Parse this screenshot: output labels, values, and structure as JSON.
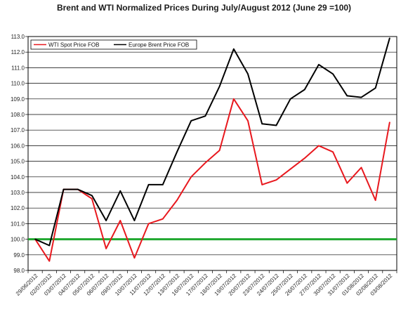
{
  "chart_data": {
    "type": "line",
    "title": "Brent and WTI Normalized Prices  During July/August  2012  (June 29 =100)",
    "xlabel": "",
    "ylabel": "",
    "ylim": [
      98.0,
      113.0
    ],
    "yticks": [
      "98.0",
      "99.0",
      "100.0",
      "101.0",
      "102.0",
      "103.0",
      "104.0",
      "105.0",
      "106.0",
      "107.0",
      "108.0",
      "109.0",
      "110.0",
      "111.0",
      "112.0",
      "113.0"
    ],
    "grid": "horizontal",
    "legend_position": "top-left",
    "categories": [
      "29/06/2012",
      "02/07/2012",
      "03/07/2012",
      "04/07/2012",
      "05/07/2012",
      "06/07/2012",
      "09/07/2012",
      "10/07/2012",
      "11/07/2012",
      "12/07/2012",
      "13/07/2012",
      "16/07/2012",
      "17/07/2012",
      "18/07/2012",
      "19/07/2012",
      "20/07/2012",
      "23/07/2012",
      "24/07/2012",
      "25/07/2012",
      "26/07/2012",
      "27/07/2012",
      "30/07/2012",
      "31/07/2012",
      "01/08/2012",
      "02/08/2012",
      "03/08/2012"
    ],
    "series": [
      {
        "name": "WTI Spot Price FOB",
        "color": "#e8181e",
        "values": [
          100.0,
          98.6,
          103.2,
          103.2,
          102.6,
          99.4,
          101.2,
          98.8,
          101.0,
          101.3,
          102.5,
          104.0,
          104.9,
          105.7,
          109.0,
          107.6,
          103.5,
          103.8,
          104.5,
          105.2,
          106.0,
          105.6,
          103.6,
          104.6,
          102.5,
          107.5
        ]
      },
      {
        "name": "Europe Brent Price FOB",
        "color": "#000000",
        "values": [
          100.0,
          99.6,
          103.2,
          103.2,
          102.8,
          101.2,
          103.1,
          101.2,
          103.5,
          103.5,
          105.6,
          107.6,
          107.9,
          109.8,
          112.2,
          110.6,
          107.4,
          107.3,
          109.0,
          109.6,
          111.2,
          110.6,
          109.2,
          109.1,
          109.7,
          112.9
        ]
      }
    ],
    "reference_line": {
      "value": 100.0,
      "color": "#21a830"
    }
  }
}
